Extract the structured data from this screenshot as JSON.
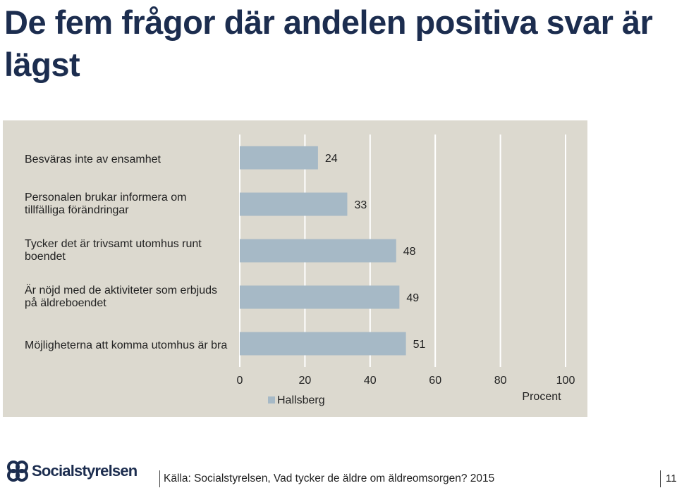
{
  "slide": {
    "title": "De fem frågor där andelen positiva svar är lägst",
    "source": "Källa: Socialstyrelsen, Vad tycker de äldre om äldreomsorgen? 2015",
    "page_number": "11",
    "logo_text": "Socialstyrelsen"
  },
  "chart_data": {
    "type": "bar",
    "orientation": "horizontal",
    "categories": [
      "Besväras inte av ensamhet",
      "Personalen brukar informera om tillfälliga förändringar",
      "Tycker det är trivsamt utomhus runt boendet",
      "Är nöjd med de aktiviteter som erbjuds på äldreboendet",
      "Möjligheterna att komma utomhus är bra"
    ],
    "series": [
      {
        "name": "Hallsberg",
        "values": [
          24,
          33,
          48,
          49,
          51
        ]
      }
    ],
    "xlabel": "Procent",
    "xlim": [
      0,
      100
    ],
    "xticks": [
      0,
      20,
      40,
      60,
      80,
      100
    ],
    "grid": true,
    "legend": "bottom-left",
    "colors": {
      "bar": "#a6b9c6",
      "panel": "#dcd9cf",
      "gridline": "#ffffff",
      "title": "#1c2d4f"
    }
  }
}
